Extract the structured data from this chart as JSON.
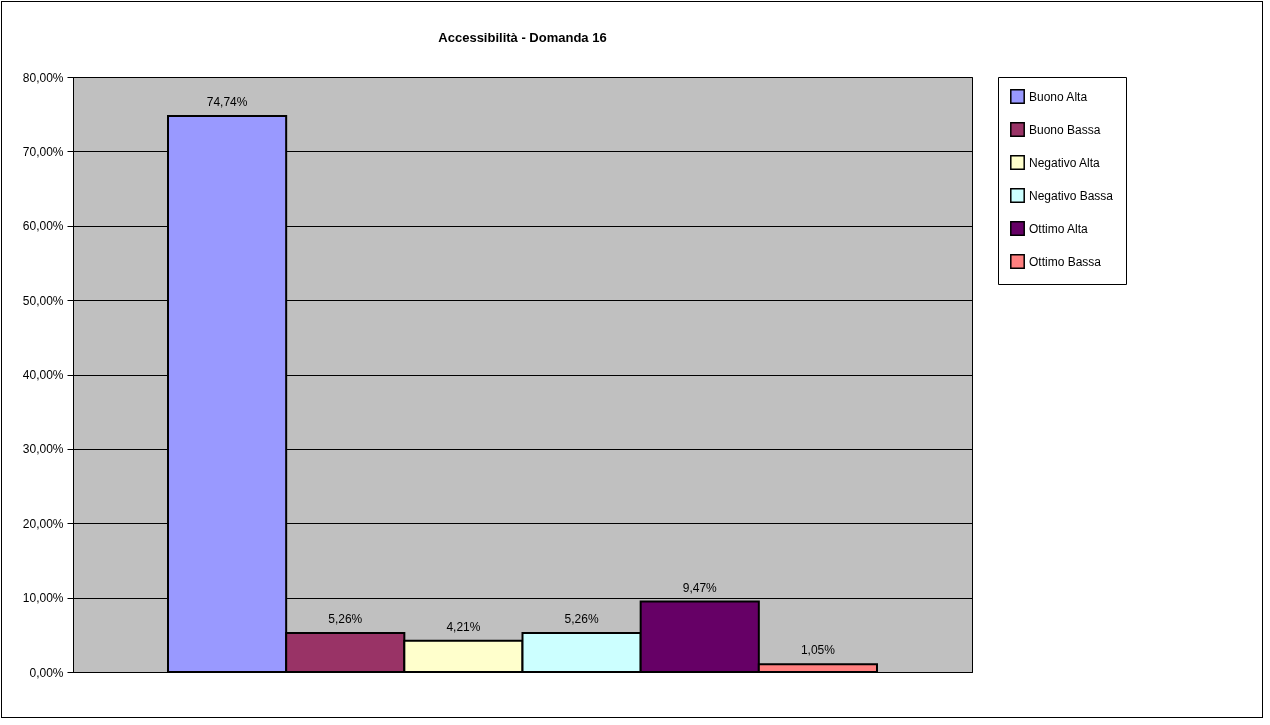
{
  "chart_data": {
    "type": "bar",
    "title": "Accessibilità - Domanda 16",
    "categories": [
      null
    ],
    "series": [
      {
        "name": "Buono Alta",
        "color": "#9999ff",
        "values": [
          74.74
        ],
        "value_labels": [
          "74,74%"
        ]
      },
      {
        "name": "Buono Bassa",
        "color": "#993366",
        "values": [
          5.26
        ],
        "value_labels": [
          "5,26%"
        ]
      },
      {
        "name": "Negativo Alta",
        "color": "#ffffcc",
        "values": [
          4.21
        ],
        "value_labels": [
          "4,21%"
        ]
      },
      {
        "name": "Negativo Bassa",
        "color": "#ccffff",
        "values": [
          5.26
        ],
        "value_labels": [
          "5,26%"
        ]
      },
      {
        "name": "Ottimo Alta",
        "color": "#660066",
        "values": [
          9.47
        ],
        "value_labels": [
          "9,47%"
        ]
      },
      {
        "name": "Ottimo Bassa",
        "color": "#ff8080",
        "values": [
          1.05
        ],
        "value_labels": [
          "1,05%"
        ]
      }
    ],
    "ylim": [
      0,
      80
    ],
    "yticks": [
      {
        "value": 0,
        "label": "0,00%"
      },
      {
        "value": 10,
        "label": "10,00%"
      },
      {
        "value": 20,
        "label": "20,00%"
      },
      {
        "value": 30,
        "label": "30,00%"
      },
      {
        "value": 40,
        "label": "40,00%"
      },
      {
        "value": 50,
        "label": "50,00%"
      },
      {
        "value": 60,
        "label": "60,00%"
      },
      {
        "value": 70,
        "label": "70,00%"
      },
      {
        "value": 80,
        "label": "80,00%"
      }
    ],
    "grid": "y",
    "legend": "right",
    "tick_labels": "y"
  }
}
